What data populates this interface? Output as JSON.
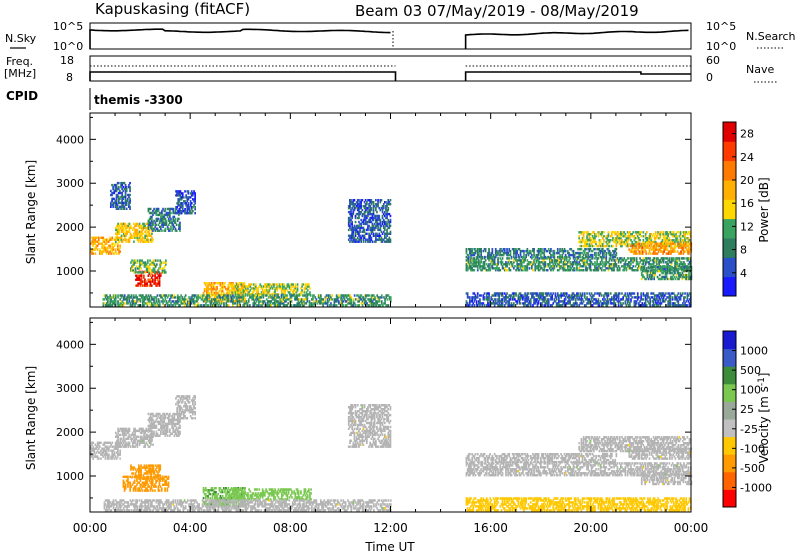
{
  "header": {
    "station": "Kapuskasing (fitACF)",
    "beam_date": "Beam 03 07/May/2019 - 08/May/2019"
  },
  "panels": {
    "nsky": {
      "label": "N.Sky",
      "right_label": "N.Search",
      "left_ticks": [
        "10^5",
        "10^0"
      ],
      "right_ticks": [
        "10^5",
        "10^0"
      ]
    },
    "freq": {
      "label_line1": "Freq.",
      "label_line2": "[MHz]",
      "right_label": "Nave",
      "left_ticks": [
        "18",
        "8"
      ],
      "right_ticks": [
        "60",
        "0"
      ]
    },
    "cpid": {
      "label": "CPID",
      "text": "themis -3300"
    }
  },
  "colors": {
    "power": [
      "#1a1aff",
      "#2a4fc8",
      "#2e7d5e",
      "#3aa360",
      "#ffd700",
      "#ffb000",
      "#ff7a00",
      "#ff3a00",
      "#e00000"
    ],
    "velocity": [
      "#ff0000",
      "#ff6400",
      "#ff9a00",
      "#ffc800",
      "#c0c0c0",
      "#9aa89a",
      "#7ac850",
      "#3c8c3c",
      "#3a5ac8",
      "#1a1ad0"
    ],
    "ground_scatter": "#b4b4b4"
  },
  "chart_data": [
    {
      "type": "heatmap",
      "name": "power",
      "ylabel": "Slant Range [km]",
      "yticks": [
        1000,
        2000,
        3000,
        4000
      ],
      "ylim": [
        180,
        4600
      ],
      "xlim_hours": [
        0,
        24
      ],
      "colorbar": {
        "label": "Power [dB]",
        "ticks": [
          "4",
          "8",
          "12",
          "16",
          "20",
          "24",
          "28"
        ],
        "range": [
          0,
          30
        ]
      },
      "data_gap_hours": [
        12.2,
        15.0
      ],
      "scatter_bands": [
        {
          "t0": 0.0,
          "t1": 1.2,
          "r0": 1380,
          "r1": 1750,
          "power": 18
        },
        {
          "t0": 1.0,
          "t1": 2.5,
          "r0": 1650,
          "r1": 2100,
          "power": 16
        },
        {
          "t0": 2.3,
          "t1": 3.6,
          "r0": 1900,
          "r1": 2400,
          "power": 8
        },
        {
          "t0": 3.4,
          "t1": 4.2,
          "r0": 2300,
          "r1": 2800,
          "power": 5
        },
        {
          "t0": 0.8,
          "t1": 1.6,
          "r0": 2400,
          "r1": 3000,
          "power": 6
        },
        {
          "t0": 1.8,
          "t1": 2.8,
          "r0": 650,
          "r1": 1000,
          "power": 26
        },
        {
          "t0": 1.6,
          "t1": 3.0,
          "r0": 950,
          "r1": 1250,
          "power": 12
        },
        {
          "t0": 4.5,
          "t1": 6.2,
          "r0": 300,
          "r1": 720,
          "power": 18
        },
        {
          "t0": 5.6,
          "t1": 8.8,
          "r0": 450,
          "r1": 700,
          "power": 14
        },
        {
          "t0": 0.5,
          "t1": 12.0,
          "r0": 200,
          "r1": 450,
          "power": 10
        },
        {
          "t0": 10.3,
          "t1": 12.0,
          "r0": 1650,
          "r1": 2600,
          "power": 6
        },
        {
          "t0": 15.0,
          "t1": 24.0,
          "r0": 200,
          "r1": 500,
          "power": 6
        },
        {
          "t0": 15.0,
          "t1": 24.0,
          "r0": 1000,
          "r1": 1300,
          "power": 10
        },
        {
          "t0": 15.0,
          "t1": 21.0,
          "r0": 1300,
          "r1": 1500,
          "power": 8
        },
        {
          "t0": 19.5,
          "t1": 24.0,
          "r0": 1550,
          "r1": 1900,
          "power": 14
        },
        {
          "t0": 21.5,
          "t1": 24.0,
          "r0": 1380,
          "r1": 1650,
          "power": 20
        },
        {
          "t0": 22.0,
          "t1": 24.0,
          "r0": 800,
          "r1": 1100,
          "power": 10
        }
      ]
    },
    {
      "type": "heatmap",
      "name": "velocity",
      "ylabel": "Slant Range [km]",
      "xlabel": "Time UT",
      "xticks": [
        "00:00",
        "04:00",
        "08:00",
        "12:00",
        "16:00",
        "20:00",
        "00:00"
      ],
      "xtick_hours": [
        0,
        4,
        8,
        12,
        16,
        20,
        24
      ],
      "yticks": [
        1000,
        2000,
        3000,
        4000
      ],
      "ylim": [
        180,
        4600
      ],
      "xlim_hours": [
        0,
        24
      ],
      "colorbar": {
        "label": "Velocity [m s^-1]",
        "ticks": [
          "-1000",
          "-500",
          "-100",
          "-25",
          "25",
          "100",
          "500",
          "1000"
        ],
        "range": [
          -1250,
          1250
        ]
      },
      "data_gap_hours": [
        12.2,
        15.0
      ],
      "scatter_bands": [
        {
          "t0": 0.0,
          "t1": 1.2,
          "r0": 1380,
          "r1": 1750,
          "velocity": 0
        },
        {
          "t0": 1.0,
          "t1": 2.5,
          "r0": 1650,
          "r1": 2100,
          "velocity": 0
        },
        {
          "t0": 2.3,
          "t1": 3.6,
          "r0": 1900,
          "r1": 2400,
          "velocity": 0
        },
        {
          "t0": 3.4,
          "t1": 4.2,
          "r0": 2300,
          "r1": 2800,
          "velocity": 0
        },
        {
          "t0": 1.3,
          "t1": 3.1,
          "r0": 650,
          "r1": 1000,
          "velocity": -200
        },
        {
          "t0": 1.6,
          "t1": 2.8,
          "r0": 950,
          "r1": 1250,
          "velocity": -400
        },
        {
          "t0": 4.5,
          "t1": 6.2,
          "r0": 300,
          "r1": 720,
          "velocity": 80
        },
        {
          "t0": 5.6,
          "t1": 8.8,
          "r0": 450,
          "r1": 700,
          "velocity": 60
        },
        {
          "t0": 0.5,
          "t1": 12.0,
          "r0": 200,
          "r1": 450,
          "velocity": 0
        },
        {
          "t0": 10.3,
          "t1": 12.0,
          "r0": 1650,
          "r1": 2600,
          "velocity": 0
        },
        {
          "t0": 15.0,
          "t1": 24.0,
          "r0": 200,
          "r1": 500,
          "velocity": -60
        },
        {
          "t0": 15.0,
          "t1": 24.0,
          "r0": 1000,
          "r1": 1300,
          "velocity": 0
        },
        {
          "t0": 15.0,
          "t1": 21.0,
          "r0": 1300,
          "r1": 1500,
          "velocity": 0
        },
        {
          "t0": 19.5,
          "t1": 24.0,
          "r0": 1550,
          "r1": 1900,
          "velocity": 0
        },
        {
          "t0": 21.5,
          "t1": 24.0,
          "r0": 1380,
          "r1": 1650,
          "velocity": 0
        },
        {
          "t0": 22.0,
          "t1": 24.0,
          "r0": 800,
          "r1": 1100,
          "velocity": 0
        }
      ]
    }
  ]
}
